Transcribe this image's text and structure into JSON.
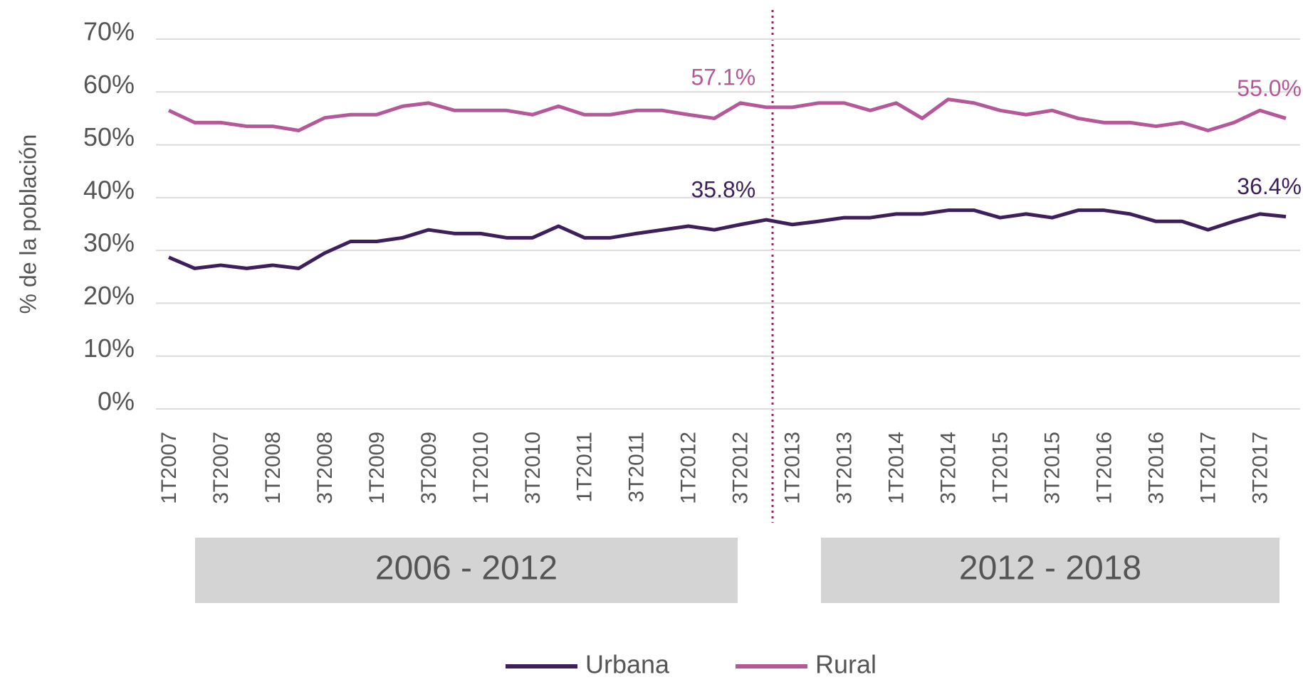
{
  "chart_data": {
    "type": "line",
    "y_label": "% de la población",
    "categories": [
      "1T2007",
      null,
      "3T2007",
      null,
      "1T2008",
      null,
      "3T2008",
      null,
      "1T2009",
      null,
      "3T2009",
      null,
      "1T2010",
      null,
      "3T2010",
      null,
      "1T2011",
      null,
      "3T2011",
      null,
      "1T2012",
      null,
      "3T2012",
      null,
      "1T2013",
      null,
      "3T2013",
      null,
      "1T2014",
      null,
      "3T2014",
      null,
      "1T2015",
      null,
      "3T2015",
      null,
      "1T2016",
      null,
      "3T2016",
      null,
      "1T2017",
      null,
      "3T2017",
      null
    ],
    "series": [
      {
        "name": "Urbana",
        "color": "#3d1f5c",
        "values": [
          28.7,
          26.6,
          27.2,
          26.6,
          27.2,
          26.6,
          29.5,
          31.7,
          31.7,
          32.4,
          33.9,
          33.2,
          33.2,
          32.4,
          32.4,
          34.6,
          32.4,
          32.4,
          33.2,
          33.9,
          34.6,
          33.9,
          34.9,
          35.8,
          34.9,
          35.5,
          36.2,
          36.2,
          36.9,
          36.9,
          37.6,
          37.6,
          36.2,
          36.9,
          36.2,
          37.6,
          37.6,
          36.9,
          35.5,
          35.5,
          33.9,
          35.5,
          36.9,
          36.4
        ],
        "value_labels": [
          null,
          null,
          null,
          null,
          null,
          null,
          null,
          null,
          null,
          null,
          null,
          null,
          null,
          null,
          null,
          null,
          null,
          null,
          null,
          null,
          null,
          null,
          null,
          "35.8%",
          null,
          null,
          null,
          null,
          null,
          null,
          null,
          null,
          null,
          null,
          null,
          null,
          null,
          null,
          null,
          null,
          null,
          null,
          null,
          "36.4%"
        ]
      },
      {
        "name": "Rural",
        "color": "#b5589a",
        "values": [
          56.5,
          54.2,
          54.2,
          53.5,
          53.5,
          52.7,
          55.1,
          55.7,
          55.7,
          57.3,
          57.9,
          56.5,
          56.5,
          56.5,
          55.7,
          57.3,
          55.7,
          55.7,
          56.5,
          56.5,
          55.7,
          55.0,
          57.9,
          57.1,
          57.1,
          57.9,
          57.9,
          56.5,
          57.9,
          55.0,
          58.6,
          57.9,
          56.5,
          55.7,
          56.5,
          55.0,
          54.2,
          54.2,
          53.5,
          54.2,
          52.7,
          54.2,
          56.5,
          55.0
        ],
        "value_labels": [
          null,
          null,
          null,
          null,
          null,
          null,
          null,
          null,
          null,
          null,
          null,
          null,
          null,
          null,
          null,
          null,
          null,
          null,
          null,
          null,
          null,
          null,
          null,
          "57.1%",
          null,
          null,
          null,
          null,
          null,
          null,
          null,
          null,
          null,
          null,
          null,
          null,
          null,
          null,
          null,
          null,
          null,
          null,
          null,
          "55.0%"
        ]
      }
    ],
    "periods": [
      "2006 - 2012",
      "2012 - 2018"
    ],
    "ylim": [
      0,
      70
    ],
    "yticks": [
      {
        "value": 0,
        "label": "0%"
      },
      {
        "value": 10,
        "label": "10%"
      },
      {
        "value": 20,
        "label": "20%"
      },
      {
        "value": 30,
        "label": "30%"
      },
      {
        "value": 40,
        "label": "40%"
      },
      {
        "value": 50,
        "label": "50%"
      },
      {
        "value": 60,
        "label": "60%"
      },
      {
        "value": 70,
        "label": "70%"
      }
    ],
    "grid": true,
    "legend": "bottom"
  }
}
